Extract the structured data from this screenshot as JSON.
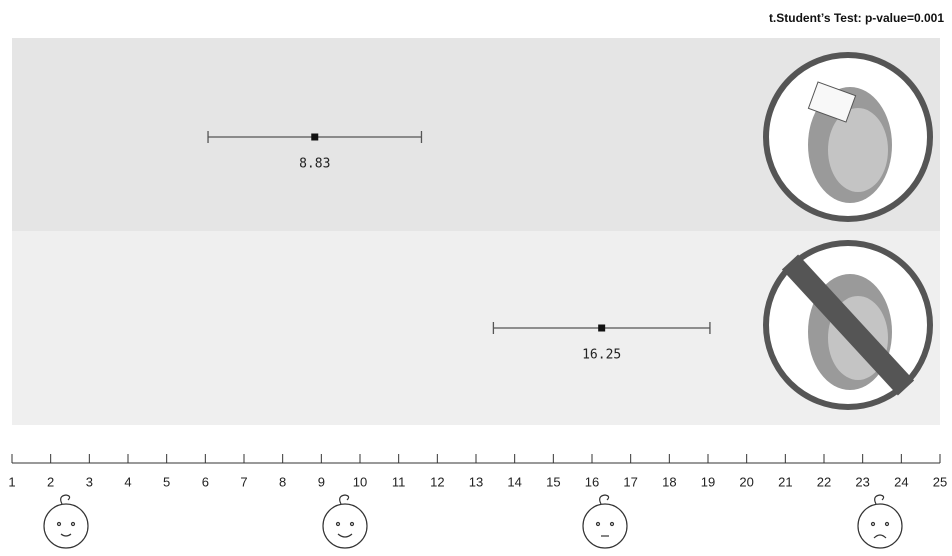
{
  "chart_data": {
    "type": "errorbar",
    "title": "t.Student’s Test: p-value=0.001",
    "values": [
      8.83,
      16.25
    ],
    "errors": [
      2.76,
      2.8
    ],
    "color": "#111111",
    "xlim": [
      1,
      25
    ],
    "xticks": [
      1,
      2,
      3,
      4,
      5,
      6,
      7,
      8,
      9,
      10,
      11,
      12,
      13,
      14,
      15,
      16,
      17,
      18,
      19,
      20,
      21,
      22,
      23,
      24,
      25
    ]
  }
}
